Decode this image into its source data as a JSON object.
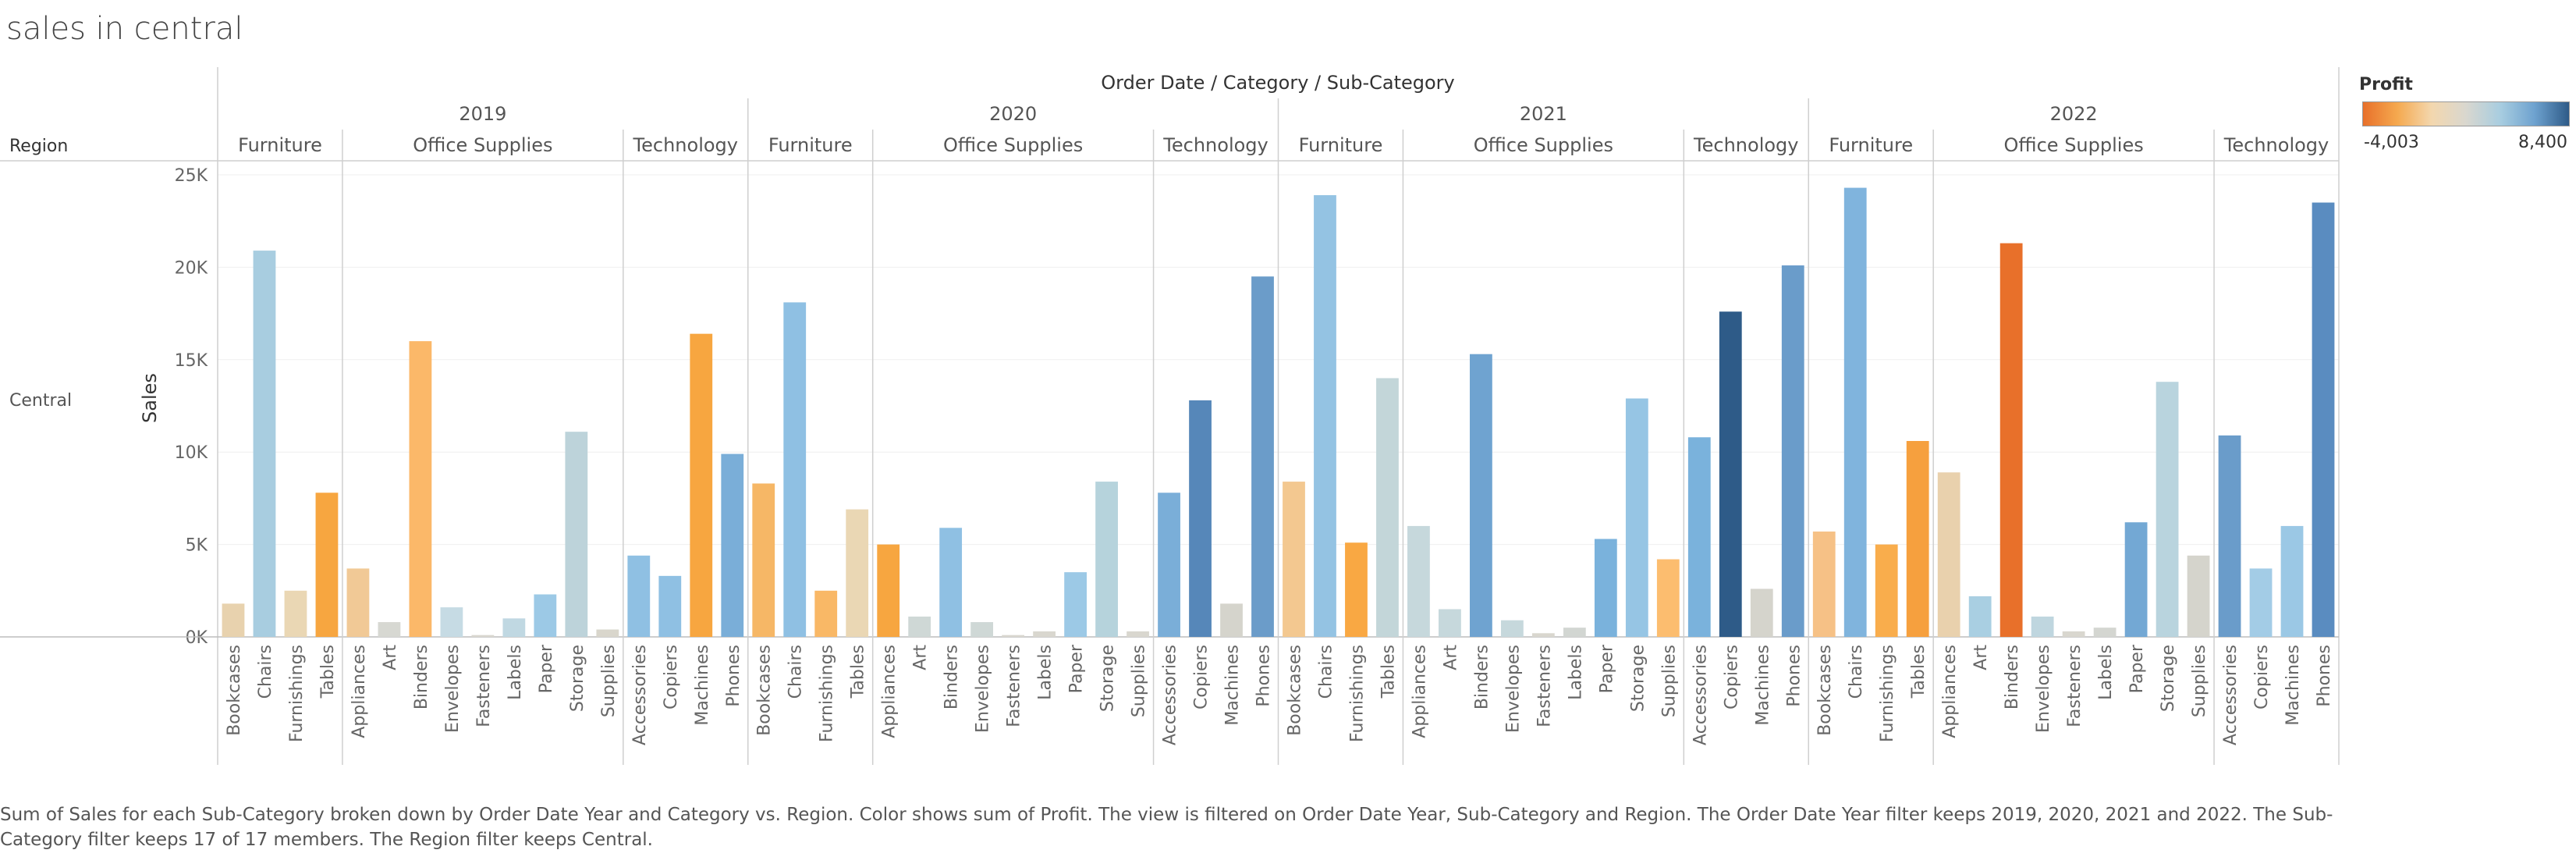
{
  "title": "sales in central",
  "caption": "Sum of Sales for each Sub-Category broken down by Order Date Year and Category vs. Region.  Color shows sum of Profit. The view is filtered on Order Date Year, Sub-Category and Region. The Order Date Year filter keeps 2019, 2020, 2021 and 2022. The Sub-Category filter keeps 17 of 17 members. The Region filter keeps Central.",
  "legend": {
    "title": "Profit",
    "min_label": "-4,003",
    "max_label": "8,400",
    "min_value": -4003,
    "max_value": 8400,
    "colors": [
      "#e8702a",
      "#f5a94f",
      "#f3d7ae",
      "#d9d7cf",
      "#a8cde0",
      "#6ea2cf",
      "#2e5b88"
    ]
  },
  "header": {
    "column_title": "Order Date / Category / Sub-Category",
    "row_title": "Region",
    "region_value": "Central"
  },
  "chart_data": {
    "type": "bar",
    "title": "sales in central",
    "xlabel": "",
    "ylabel": "Sales",
    "ylim": [
      0,
      25000
    ],
    "yticks": [
      0,
      5000,
      10000,
      15000,
      20000,
      25000
    ],
    "ytick_labels": [
      "0K",
      "5K",
      "10K",
      "15K",
      "20K",
      "25K"
    ],
    "years": [
      {
        "year": "2019",
        "categories": [
          {
            "name": "Furniture",
            "items": [
              {
                "sub": "Bookcases",
                "value": 1800,
                "color": "#e8d2ae"
              },
              {
                "sub": "Chairs",
                "value": 20900,
                "color": "#a8cde0"
              },
              {
                "sub": "Furnishings",
                "value": 2500,
                "color": "#ead7b4"
              },
              {
                "sub": "Tables",
                "value": 7800,
                "color": "#f7a640"
              }
            ]
          },
          {
            "name": "Office Supplies",
            "items": [
              {
                "sub": "Appliances",
                "value": 3700,
                "color": "#f1c996"
              },
              {
                "sub": "Art",
                "value": 800,
                "color": "#d7d8d2"
              },
              {
                "sub": "Binders",
                "value": 16000,
                "color": "#fbb869"
              },
              {
                "sub": "Envelopes",
                "value": 1600,
                "color": "#c6dbe4"
              },
              {
                "sub": "Fasteners",
                "value": 100,
                "color": "#d9d7cf"
              },
              {
                "sub": "Labels",
                "value": 1000,
                "color": "#c0d8e2"
              },
              {
                "sub": "Paper",
                "value": 2300,
                "color": "#9cc9e6"
              },
              {
                "sub": "Storage",
                "value": 11100,
                "color": "#bdd3da"
              },
              {
                "sub": "Supplies",
                "value": 400,
                "color": "#d9d6cc"
              }
            ]
          },
          {
            "name": "Technology",
            "items": [
              {
                "sub": "Accessories",
                "value": 4400,
                "color": "#8fc0e3"
              },
              {
                "sub": "Copiers",
                "value": 3300,
                "color": "#8fc0e3"
              },
              {
                "sub": "Machines",
                "value": 16400,
                "color": "#f7a640"
              },
              {
                "sub": "Phones",
                "value": 9900,
                "color": "#7aaed8"
              }
            ]
          }
        ]
      },
      {
        "year": "2020",
        "categories": [
          {
            "name": "Furniture",
            "items": [
              {
                "sub": "Bookcases",
                "value": 8300,
                "color": "#f6b766"
              },
              {
                "sub": "Chairs",
                "value": 18100,
                "color": "#8fc0e3"
              },
              {
                "sub": "Furnishings",
                "value": 2500,
                "color": "#f9b866"
              },
              {
                "sub": "Tables",
                "value": 6900,
                "color": "#ead7b4"
              }
            ]
          },
          {
            "name": "Office Supplies",
            "items": [
              {
                "sub": "Appliances",
                "value": 5000,
                "color": "#f7a640"
              },
              {
                "sub": "Art",
                "value": 1100,
                "color": "#cfd8d6"
              },
              {
                "sub": "Binders",
                "value": 5900,
                "color": "#8fc0e3"
              },
              {
                "sub": "Envelopes",
                "value": 800,
                "color": "#cfd8d6"
              },
              {
                "sub": "Fasteners",
                "value": 100,
                "color": "#d9d7cf"
              },
              {
                "sub": "Labels",
                "value": 300,
                "color": "#d9d7cf"
              },
              {
                "sub": "Paper",
                "value": 3500,
                "color": "#9cc9e6"
              },
              {
                "sub": "Storage",
                "value": 8400,
                "color": "#b6d3dc"
              },
              {
                "sub": "Supplies",
                "value": 300,
                "color": "#d9d7cf"
              }
            ]
          },
          {
            "name": "Technology",
            "items": [
              {
                "sub": "Accessories",
                "value": 7800,
                "color": "#7aaed8"
              },
              {
                "sub": "Copiers",
                "value": 12800,
                "color": "#5687b9"
              },
              {
                "sub": "Machines",
                "value": 1800,
                "color": "#d5d4cc"
              },
              {
                "sub": "Phones",
                "value": 19500,
                "color": "#6b9cc9"
              }
            ]
          }
        ]
      },
      {
        "year": "2021",
        "categories": [
          {
            "name": "Furniture",
            "items": [
              {
                "sub": "Bookcases",
                "value": 8400,
                "color": "#f3c890"
              },
              {
                "sub": "Chairs",
                "value": 23900,
                "color": "#94c3e3"
              },
              {
                "sub": "Furnishings",
                "value": 5100,
                "color": "#f9a843"
              },
              {
                "sub": "Tables",
                "value": 14000,
                "color": "#c3d6d9"
              }
            ]
          },
          {
            "name": "Office Supplies",
            "items": [
              {
                "sub": "Appliances",
                "value": 6000,
                "color": "#c6d8dc"
              },
              {
                "sub": "Art",
                "value": 1500,
                "color": "#c6d8dc"
              },
              {
                "sub": "Binders",
                "value": 15300,
                "color": "#6fa3d0"
              },
              {
                "sub": "Envelopes",
                "value": 900,
                "color": "#c6d8dc"
              },
              {
                "sub": "Fasteners",
                "value": 200,
                "color": "#d9d7cf"
              },
              {
                "sub": "Labels",
                "value": 500,
                "color": "#d2d6d2"
              },
              {
                "sub": "Paper",
                "value": 5300,
                "color": "#7ab2dc"
              },
              {
                "sub": "Storage",
                "value": 12900,
                "color": "#96c5e4"
              },
              {
                "sub": "Supplies",
                "value": 4200,
                "color": "#fcbd6f"
              }
            ]
          },
          {
            "name": "Technology",
            "items": [
              {
                "sub": "Accessories",
                "value": 10800,
                "color": "#7ab2dc"
              },
              {
                "sub": "Copiers",
                "value": 17600,
                "color": "#2e5b88"
              },
              {
                "sub": "Machines",
                "value": 2600,
                "color": "#d5d4cc"
              },
              {
                "sub": "Phones",
                "value": 20100,
                "color": "#6a9cca"
              }
            ]
          }
        ]
      },
      {
        "year": "2022",
        "categories": [
          {
            "name": "Furniture",
            "items": [
              {
                "sub": "Bookcases",
                "value": 5700,
                "color": "#f6c186"
              },
              {
                "sub": "Chairs",
                "value": 24300,
                "color": "#80b4dd"
              },
              {
                "sub": "Furnishings",
                "value": 5000,
                "color": "#f9ad4c"
              },
              {
                "sub": "Tables",
                "value": 10600,
                "color": "#f6a03e"
              }
            ]
          },
          {
            "name": "Office Supplies",
            "items": [
              {
                "sub": "Appliances",
                "value": 8900,
                "color": "#e9d1ad"
              },
              {
                "sub": "Art",
                "value": 2200,
                "color": "#a9cfe2"
              },
              {
                "sub": "Binders",
                "value": 21300,
                "color": "#e8702a"
              },
              {
                "sub": "Envelopes",
                "value": 1100,
                "color": "#bfd6df"
              },
              {
                "sub": "Fasteners",
                "value": 300,
                "color": "#d9d7cf"
              },
              {
                "sub": "Labels",
                "value": 500,
                "color": "#d4d6d1"
              },
              {
                "sub": "Paper",
                "value": 6200,
                "color": "#73a8d4"
              },
              {
                "sub": "Storage",
                "value": 13800,
                "color": "#b9d4de"
              },
              {
                "sub": "Supplies",
                "value": 4400,
                "color": "#d5d4cc"
              }
            ]
          },
          {
            "name": "Technology",
            "items": [
              {
                "sub": "Accessories",
                "value": 10900,
                "color": "#6a9cca"
              },
              {
                "sub": "Copiers",
                "value": 3700,
                "color": "#a3cce6"
              },
              {
                "sub": "Machines",
                "value": 6000,
                "color": "#9bc8e5"
              },
              {
                "sub": "Phones",
                "value": 23500,
                "color": "#5a8cc0"
              }
            ]
          }
        ]
      }
    ]
  }
}
